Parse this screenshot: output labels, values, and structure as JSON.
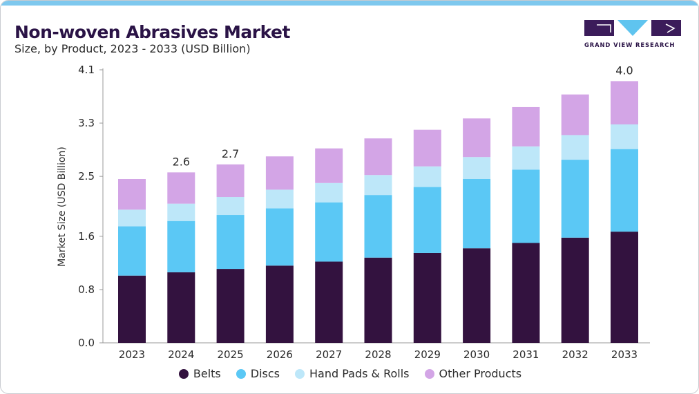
{
  "header": {
    "title": "Non-woven Abrasives Market",
    "subtitle": "Size, by Product, 2023 - 2033 (USD Billion)"
  },
  "logo": {
    "text": "GRAND VIEW RESEARCH",
    "colors": {
      "dark": "#3b1c5a",
      "accent": "#5fc4ef"
    }
  },
  "chart_data": {
    "type": "bar",
    "stacked": true,
    "categories": [
      "2023",
      "2024",
      "2025",
      "2026",
      "2027",
      "2028",
      "2029",
      "2030",
      "2031",
      "2032",
      "2033"
    ],
    "series": [
      {
        "name": "Belts",
        "color": "#33123f",
        "values": [
          1.01,
          1.06,
          1.11,
          1.16,
          1.22,
          1.28,
          1.35,
          1.42,
          1.5,
          1.58,
          1.67
        ]
      },
      {
        "name": "Discs",
        "color": "#5bc8f5",
        "values": [
          0.74,
          0.77,
          0.81,
          0.86,
          0.89,
          0.94,
          0.99,
          1.04,
          1.1,
          1.17,
          1.24
        ]
      },
      {
        "name": "Hand Pads & Rolls",
        "color": "#bde7f9",
        "values": [
          0.25,
          0.26,
          0.27,
          0.28,
          0.29,
          0.3,
          0.31,
          0.33,
          0.35,
          0.37,
          0.37
        ]
      },
      {
        "name": "Other Products",
        "color": "#d3a5e6",
        "values": [
          0.46,
          0.47,
          0.49,
          0.5,
          0.52,
          0.55,
          0.55,
          0.58,
          0.59,
          0.61,
          0.65
        ]
      }
    ],
    "total_labels": {
      "2024": "2.6",
      "2025": "2.7",
      "2033": "4.0"
    },
    "yticks": [
      "0.0",
      "0.8",
      "1.6",
      "2.5",
      "3.3",
      "4.1"
    ],
    "ylim": [
      0,
      4.1
    ],
    "xlabel": "",
    "ylabel": "Market Size (USD Billion)",
    "legend_position": "bottom",
    "grid": false
  }
}
